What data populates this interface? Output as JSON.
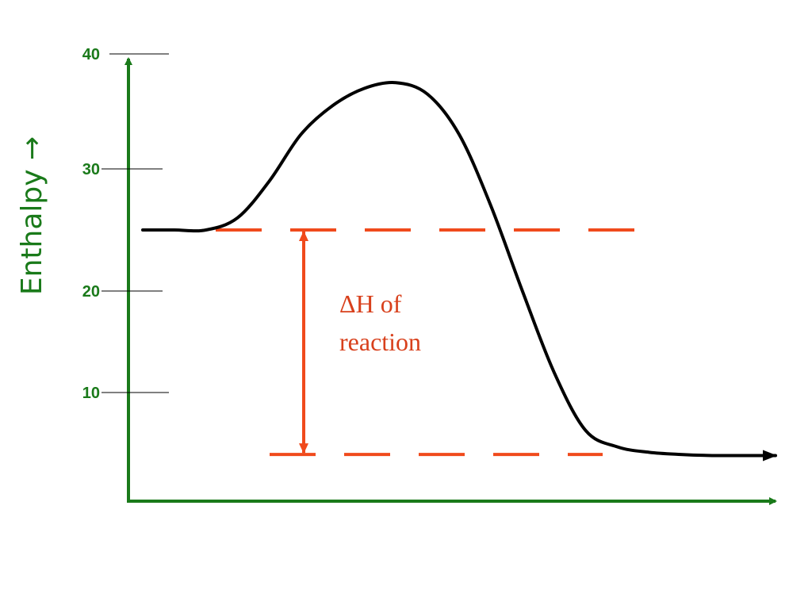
{
  "chart_data": {
    "type": "line",
    "title": "",
    "xlabel": "",
    "ylabel": "Enthalpy →",
    "ylim": [
      0,
      40
    ],
    "y_ticks": [
      "40",
      "30",
      "20",
      "10"
    ],
    "grid": false,
    "legend": "none",
    "series": [
      {
        "curve": "energy profile",
        "x": [
          0,
          0.05,
          0.1,
          0.15,
          0.2,
          0.25,
          0.3,
          0.35,
          0.4,
          0.45,
          0.5,
          0.55,
          0.6,
          0.65,
          0.7,
          0.75,
          0.8,
          0.85,
          0.9,
          0.95,
          1.0
        ],
        "y": [
          25,
          25,
          25,
          26,
          29,
          33,
          35.5,
          37,
          37.5,
          36.5,
          33,
          27,
          20,
          12,
          6.5,
          5,
          4.5,
          4.3,
          4.2,
          4.2,
          4.2
        ]
      }
    ],
    "reference_lines": [
      {
        "name": "reactants level",
        "y": 25
      },
      {
        "name": "products level",
        "y": 4.3
      }
    ],
    "annotation": {
      "line1": "ΔH of",
      "line2": "reaction"
    },
    "colors": {
      "axis": "#1a7a1a",
      "curve": "#000000",
      "dashed": "#f04a1c",
      "annotation": "#d8401c",
      "tick_text": "#1a7a1a"
    }
  }
}
